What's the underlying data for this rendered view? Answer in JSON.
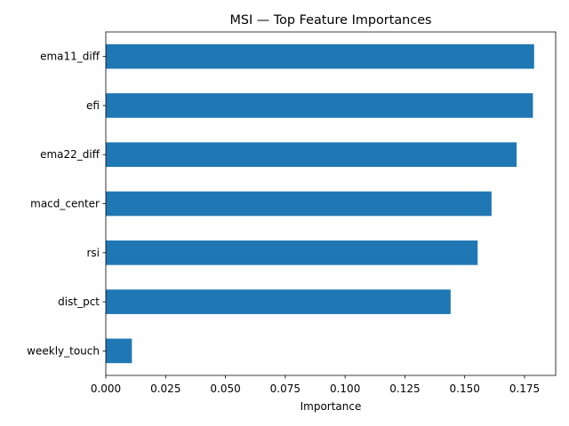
{
  "chart_data": {
    "type": "bar",
    "orientation": "horizontal",
    "title": "MSI — Top Feature Importances",
    "xlabel": "Importance",
    "ylabel": "",
    "categories": [
      "ema11_diff",
      "efi",
      "ema22_diff",
      "macd_center",
      "rsi",
      "dist_pct",
      "weekly_touch"
    ],
    "values": [
      0.179,
      0.1785,
      0.1717,
      0.1612,
      0.1554,
      0.1441,
      0.0109
    ],
    "xlim": [
      0,
      0.188
    ],
    "xticks": [
      "0.000",
      "0.025",
      "0.050",
      "0.075",
      "0.100",
      "0.125",
      "0.150",
      "0.175"
    ],
    "xtick_values": [
      0,
      0.025,
      0.05,
      0.075,
      0.1,
      0.125,
      0.15,
      0.175
    ],
    "bar_color": "#1f77b4",
    "grid": false,
    "legend": "none"
  }
}
